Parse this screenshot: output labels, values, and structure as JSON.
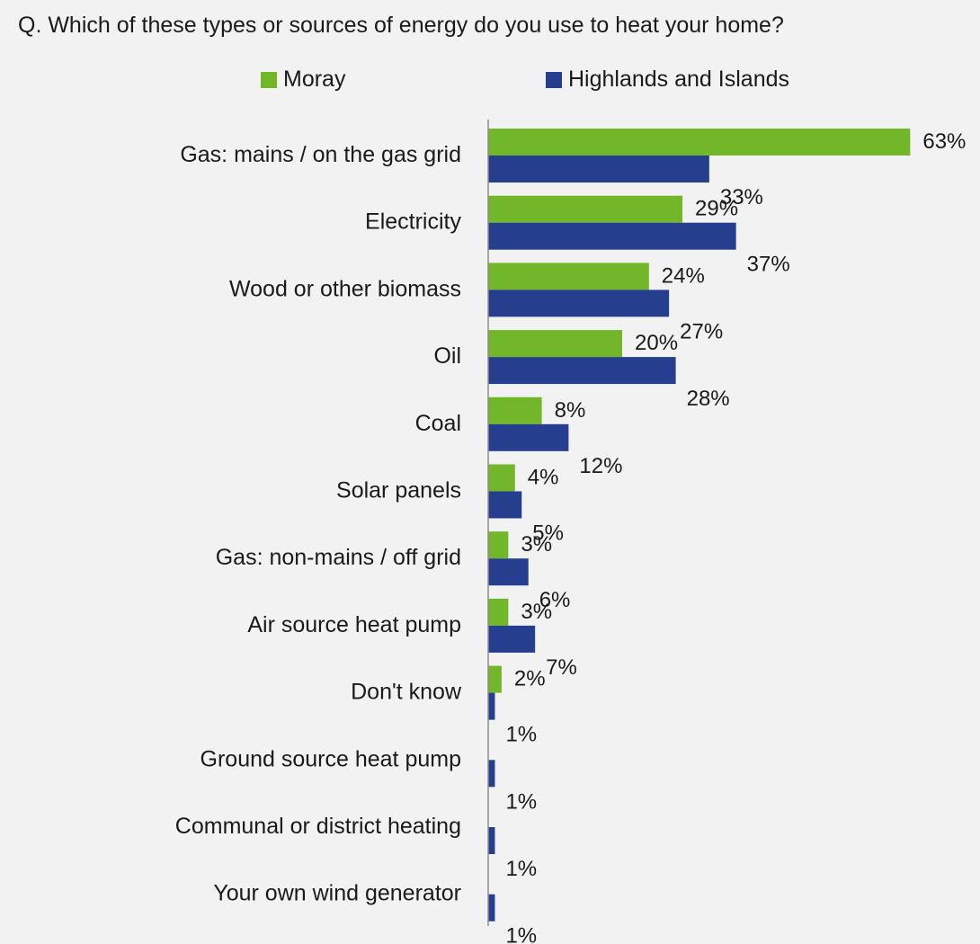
{
  "question": "Q. Which of these types or sources of energy do you use to heat your home?",
  "colors": {
    "moray": "#72b62a",
    "highlands": "#253f8e",
    "axis": "#8c8c8c",
    "background": "#f2f2f2"
  },
  "legend": {
    "moray": "Moray",
    "highlands": "Highlands and Islands"
  },
  "chart_data": {
    "type": "bar",
    "orientation": "horizontal",
    "title": "Q. Which of these types or sources of energy do you use to heat your home?",
    "categories": [
      "Gas: mains / on the gas grid",
      "Electricity",
      "Wood or other biomass",
      "Oil",
      "Coal",
      "Solar panels",
      "Gas: non-mains / off grid",
      "Air source heat pump",
      "Don't know",
      "Ground source heat pump",
      "Communal or district heating",
      "Your own wind generator"
    ],
    "series": [
      {
        "name": "Moray",
        "values": [
          63,
          29,
          24,
          20,
          8,
          4,
          3,
          3,
          2,
          null,
          null,
          null
        ],
        "labels": [
          "63%",
          "29%",
          "24%",
          "20%",
          "8%",
          "4%",
          "3%",
          "3%",
          "2%",
          "",
          "",
          ""
        ]
      },
      {
        "name": "Highlands and Islands",
        "values": [
          33,
          37,
          27,
          28,
          12,
          5,
          6,
          7,
          1,
          1,
          1,
          1
        ],
        "labels": [
          "33%",
          "37%",
          "27%",
          "28%",
          "12%",
          "5%",
          "6%",
          "7%",
          "1%",
          "1%",
          "1%",
          "1%"
        ]
      }
    ],
    "legend_position": "top",
    "grid": false
  }
}
